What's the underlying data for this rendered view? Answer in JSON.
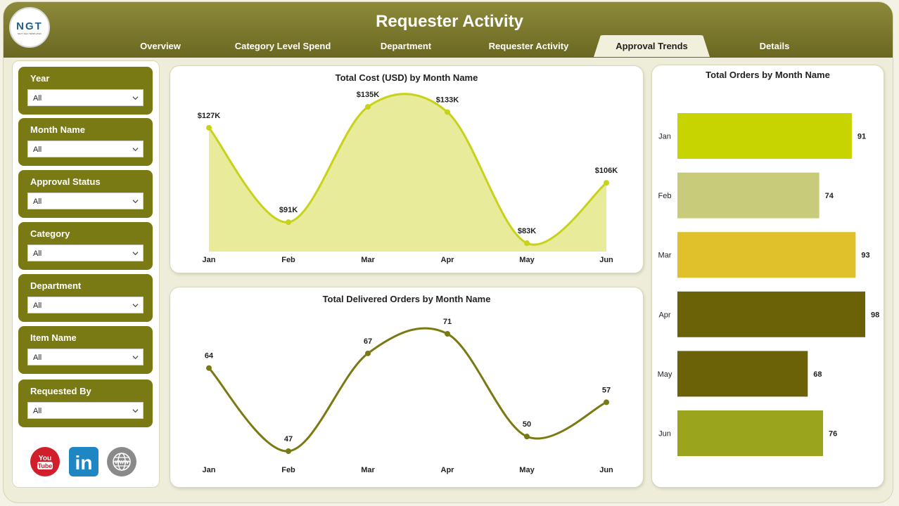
{
  "header": {
    "title": "Requester Activity",
    "logo_text": "NGT",
    "logo_subtext": "NEXT GEN TEMPLATES",
    "tabs": [
      {
        "label": "Overview",
        "active": false
      },
      {
        "label": "Category Level Spend",
        "active": false
      },
      {
        "label": "Department",
        "active": false
      },
      {
        "label": "Requester Activity",
        "active": false
      },
      {
        "label": "Approval Trends",
        "active": true
      },
      {
        "label": "Details",
        "active": false
      }
    ]
  },
  "filters": [
    {
      "label": "Year",
      "value": "All"
    },
    {
      "label": "Month Name",
      "value": "All"
    },
    {
      "label": "Approval Status",
      "value": "All"
    },
    {
      "label": "Category",
      "value": "All"
    },
    {
      "label": "Department",
      "value": "All"
    },
    {
      "label": "Item Name",
      "value": "All"
    },
    {
      "label": "Requested By",
      "value": "All"
    }
  ],
  "social": [
    {
      "icon": "youtube-icon",
      "label": "You Tube"
    },
    {
      "icon": "linkedin-icon",
      "label": "in"
    },
    {
      "icon": "www-icon",
      "label": "WWW"
    }
  ],
  "colors": {
    "header": "#7a7722",
    "slicer": "#7a7a14",
    "cost_line": "#c7d21a",
    "cost_fill": "#e8eb9a",
    "delivered_line": "#7a7a14"
  },
  "chart_data": [
    {
      "type": "area",
      "title": "Total Cost (USD) by Month Name",
      "categories": [
        "Jan",
        "Feb",
        "Mar",
        "Apr",
        "May",
        "Jun"
      ],
      "values": [
        127000,
        91000,
        135000,
        133000,
        83000,
        106000
      ],
      "data_labels": [
        "$127K",
        "$91K",
        "$135K",
        "$133K",
        "$83K",
        "$106K"
      ]
    },
    {
      "type": "line",
      "title": "Total Delivered Orders by Month Name",
      "categories": [
        "Jan",
        "Feb",
        "Mar",
        "Apr",
        "May",
        "Jun"
      ],
      "values": [
        64,
        47,
        67,
        71,
        50,
        57
      ]
    },
    {
      "type": "bar",
      "orientation": "horizontal",
      "title": "Total Orders by Month Name",
      "categories": [
        "Jan",
        "Feb",
        "Mar",
        "Apr",
        "May",
        "Jun"
      ],
      "values": [
        91,
        74,
        93,
        98,
        68,
        76
      ],
      "colors": [
        "#c8d400",
        "#c8cc7a",
        "#e0c12c",
        "#6b6208",
        "#6b6208",
        "#9aa41c"
      ]
    }
  ]
}
